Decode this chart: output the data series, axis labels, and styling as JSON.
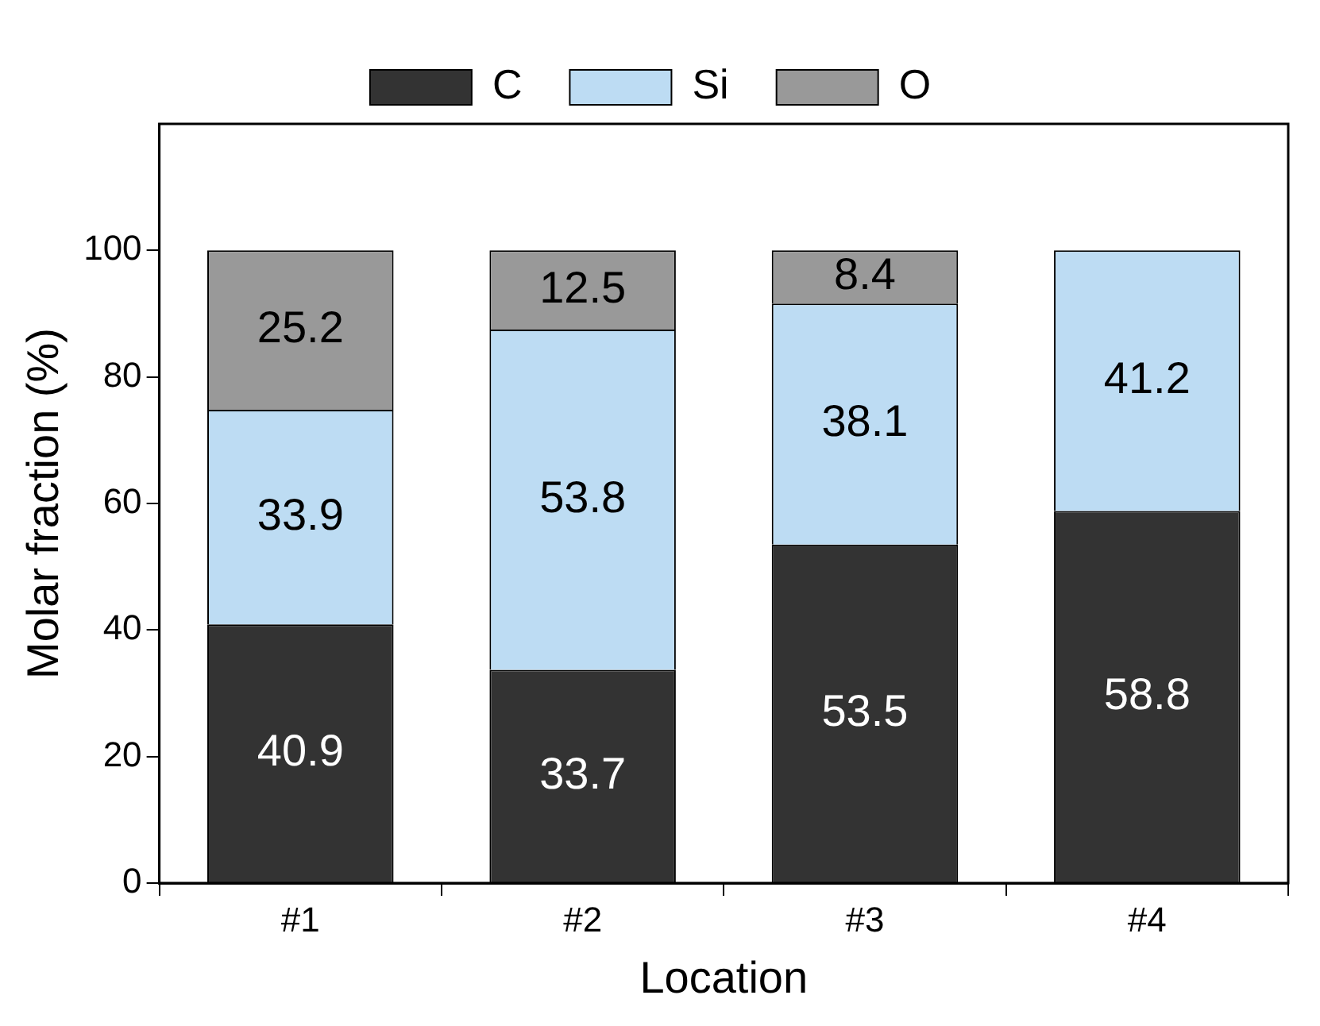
{
  "chart_data": {
    "type": "bar",
    "xlabel": "Location",
    "ylabel": "Molar fraction (%)",
    "categories": [
      "#1",
      "#2",
      "#3",
      "#4"
    ],
    "series": [
      {
        "name": "C",
        "color": "#333333",
        "values": [
          40.9,
          33.7,
          53.5,
          58.8
        ]
      },
      {
        "name": "Si",
        "color": "#bddcf3",
        "values": [
          33.9,
          53.8,
          38.1,
          41.2
        ]
      },
      {
        "name": "O",
        "color": "#999999",
        "values": [
          25.2,
          12.5,
          8.4,
          null
        ]
      }
    ],
    "stacked": true,
    "ylim": [
      0,
      120
    ],
    "yticks": [
      0,
      20,
      40,
      60,
      80,
      100
    ],
    "grid": false,
    "legend": "top",
    "data_labels": true
  }
}
